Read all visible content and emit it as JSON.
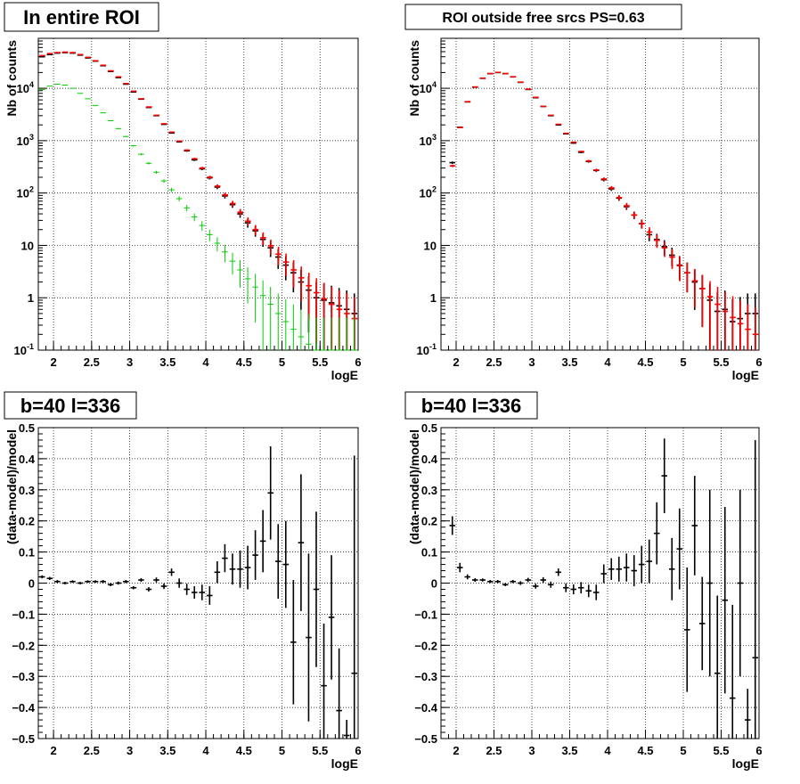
{
  "chart_data": [
    {
      "type": "scatter",
      "title": "In entire ROI",
      "xlabel": "logE",
      "ylabel": "Nb of counts",
      "xlim": [
        1.8,
        6.0
      ],
      "ylim": [
        0.1,
        90000
      ],
      "yscale": "log",
      "grid": true,
      "x_ticks": [
        "2",
        "2.5",
        "3",
        "3.5",
        "4",
        "4.5",
        "5",
        "5.5",
        "6"
      ],
      "y_ticks": [
        "10^-1",
        "1",
        "10",
        "10^2",
        "10^3",
        "10^4"
      ],
      "colors": {
        "data": "#000000",
        "model": "#ff0000",
        "blue": "#0000ff",
        "green": "#00cc00"
      },
      "series": [
        {
          "x": [
            1.85,
            1.95,
            2.05,
            2.15,
            2.25,
            2.35,
            2.45,
            2.55,
            2.65,
            2.75,
            2.85,
            2.95,
            3.05,
            3.15,
            3.25,
            3.35,
            3.45,
            3.55,
            3.65,
            3.75,
            3.85,
            3.95,
            4.05,
            4.15,
            4.25,
            4.35,
            4.45,
            4.55,
            4.65,
            4.75,
            4.85,
            4.95,
            5.05,
            5.15,
            5.25,
            5.35,
            5.45,
            5.55,
            5.65,
            5.75,
            5.85,
            5.95
          ],
          "values": [
            40000,
            44000,
            47000,
            48000,
            47000,
            43000,
            38000,
            33000,
            27000,
            21000,
            16000,
            12000,
            8500,
            6200,
            4300,
            3000,
            2050,
            1400,
            950,
            640,
            430,
            290,
            195,
            130,
            88,
            60,
            40,
            27,
            19,
            13,
            9,
            6,
            4.2,
            3,
            2,
            1.4,
            1,
            0.9,
            0.8,
            0.7,
            0.6,
            0.5
          ]
        },
        {
          "x": [
            1.85,
            1.95,
            2.05,
            2.15,
            2.25,
            2.35,
            2.45,
            2.55,
            2.65,
            2.75,
            2.85,
            2.95,
            3.05,
            3.15,
            3.25,
            3.35,
            3.45,
            3.55,
            3.65,
            3.75,
            3.85,
            3.95,
            4.05,
            4.15,
            4.25,
            4.35,
            4.45,
            4.55,
            4.65,
            4.75,
            4.85,
            4.95,
            5.05,
            5.15,
            5.25,
            5.35,
            5.45,
            5.55,
            5.65,
            5.75,
            5.85,
            5.95
          ],
          "values": [
            42000,
            46000,
            48000,
            49000,
            48000,
            44000,
            39000,
            33500,
            27500,
            21500,
            16500,
            12300,
            8800,
            6300,
            4400,
            3050,
            2100,
            1450,
            980,
            660,
            450,
            300,
            200,
            135,
            92,
            63,
            43,
            29,
            20,
            14,
            9.8,
            6.8,
            4.8,
            3.4,
            2.4,
            1.7,
            1.25,
            0.95,
            0.75,
            0.6,
            0.5,
            0.4
          ]
        },
        {
          "x": [
            1.85,
            1.95,
            2.05,
            2.15,
            2.25,
            2.35,
            2.45,
            2.55,
            2.65,
            2.75,
            2.85,
            2.95,
            3.05,
            3.15,
            3.25,
            3.35,
            3.45,
            3.55,
            3.65,
            3.75,
            3.85,
            3.95,
            4.05,
            4.15,
            4.25,
            4.35,
            4.45,
            4.55,
            4.65,
            4.75,
            4.85,
            4.95,
            5.05,
            5.15,
            5.25,
            5.35,
            5.45,
            5.55,
            5.65,
            5.75,
            5.85,
            5.95
          ],
          "values": [
            9500,
            11000,
            12000,
            11500,
            10000,
            8000,
            6300,
            4700,
            3400,
            2400,
            1700,
            1200,
            800,
            550,
            370,
            250,
            170,
            115,
            78,
            52,
            35,
            24,
            16,
            11,
            7.5,
            5,
            3.4,
            2.3,
            1.6,
            1.1,
            0.75,
            0.5,
            0.35,
            0.25,
            0.18,
            0.13,
            0.1,
            0.1,
            0.1,
            0.1,
            0.1,
            0.1
          ]
        }
      ]
    },
    {
      "type": "scatter",
      "title": "ROI outside free srcs PS=0.63",
      "xlabel": "logE",
      "ylabel": "Nb of counts",
      "xlim": [
        1.8,
        6.0
      ],
      "ylim": [
        0.1,
        90000
      ],
      "yscale": "log",
      "grid": true,
      "x_ticks": [
        "2",
        "2.5",
        "3",
        "3.5",
        "4",
        "4.5",
        "5",
        "5.5",
        "6"
      ],
      "y_ticks": [
        "10^-1",
        "1",
        "10",
        "10^2",
        "10^3",
        "10^4"
      ],
      "series": [
        {
          "x": [
            1.95,
            2.05,
            2.15,
            2.25,
            2.35,
            2.45,
            2.55,
            2.65,
            2.75,
            2.85,
            2.95,
            3.05,
            3.15,
            3.25,
            3.35,
            3.45,
            3.55,
            3.65,
            3.75,
            3.85,
            3.95,
            4.05,
            4.15,
            4.25,
            4.35,
            4.45,
            4.55,
            4.65,
            4.75,
            4.85,
            4.95,
            5.05,
            5.15,
            5.25,
            5.35,
            5.45,
            5.55,
            5.65,
            5.75,
            5.85,
            5.95
          ],
          "values": [
            380,
            1800,
            5500,
            10500,
            15500,
            19000,
            20000,
            19000,
            16500,
            13000,
            9500,
            6600,
            4500,
            3000,
            2000,
            1350,
            900,
            600,
            400,
            270,
            180,
            120,
            80,
            55,
            38,
            26,
            16,
            13,
            9.5,
            6.5,
            4.2,
            3,
            2,
            1.5,
            0.9,
            0.55,
            0.6,
            0.35,
            0.4,
            0.5,
            0.5
          ]
        },
        {
          "x": [
            1.95,
            2.05,
            2.15,
            2.25,
            2.35,
            2.45,
            2.55,
            2.65,
            2.75,
            2.85,
            2.95,
            3.05,
            3.15,
            3.25,
            3.35,
            3.45,
            3.55,
            3.65,
            3.75,
            3.85,
            3.95,
            4.05,
            4.15,
            4.25,
            4.35,
            4.45,
            4.55,
            4.65,
            4.75,
            4.85,
            4.95,
            5.05,
            5.15,
            5.25,
            5.35,
            5.45,
            5.55,
            5.65,
            5.75,
            5.85,
            5.95
          ],
          "values": [
            330,
            1780,
            5550,
            10600,
            15600,
            19100,
            20100,
            19100,
            16600,
            13100,
            9600,
            6700,
            4500,
            3050,
            2050,
            1380,
            930,
            620,
            410,
            275,
            185,
            125,
            82,
            57,
            38,
            26,
            18,
            12.5,
            9,
            6,
            4.1,
            3,
            2.1,
            1.5,
            1.05,
            0.75,
            0.55,
            0.42,
            0.32,
            0.25,
            0.2
          ]
        }
      ]
    },
    {
      "type": "scatter",
      "title": "b=40 l=336",
      "xlabel": "logE",
      "ylabel": "(data-model)/model",
      "xlim": [
        1.8,
        6.0
      ],
      "ylim": [
        -0.5,
        0.5
      ],
      "grid": true,
      "x_ticks": [
        "2",
        "2.5",
        "3",
        "3.5",
        "4",
        "4.5",
        "5",
        "5.5",
        "6"
      ],
      "y_ticks": [
        "-0.5",
        "-0.4",
        "-0.3",
        "-0.2",
        "-0.1",
        "0",
        "0.1",
        "0.2",
        "0.3",
        "0.4",
        "0.5"
      ],
      "series": [
        {
          "x": [
            1.85,
            1.95,
            2.05,
            2.15,
            2.25,
            2.35,
            2.45,
            2.55,
            2.65,
            2.75,
            2.85,
            2.95,
            3.05,
            3.15,
            3.25,
            3.35,
            3.45,
            3.55,
            3.65,
            3.75,
            3.85,
            3.95,
            4.05,
            4.15,
            4.25,
            4.35,
            4.45,
            4.55,
            4.65,
            4.75,
            4.85,
            4.95,
            5.05,
            5.15,
            5.25,
            5.35,
            5.45,
            5.55,
            5.65,
            5.75,
            5.85,
            5.95
          ],
          "values": [
            0.02,
            0.015,
            0.005,
            0.0,
            0.005,
            0.0,
            0.005,
            0.005,
            0.005,
            -0.005,
            0.0,
            0.005,
            -0.015,
            0.01,
            -0.02,
            0.01,
            -0.01,
            0.035,
            0.0,
            -0.02,
            -0.03,
            -0.03,
            -0.04,
            0.035,
            0.08,
            0.045,
            0.045,
            0.05,
            0.09,
            0.135,
            0.29,
            0.07,
            0.06,
            -0.19,
            0.13,
            -0.175,
            -0.02,
            -0.33,
            -0.11,
            -0.41,
            -0.49,
            -0.29
          ],
          "errors": [
            0.005,
            0.005,
            0.005,
            0.004,
            0.004,
            0.004,
            0.004,
            0.004,
            0.005,
            0.005,
            0.005,
            0.005,
            0.005,
            0.006,
            0.007,
            0.008,
            0.009,
            0.012,
            0.015,
            0.018,
            0.02,
            0.025,
            0.03,
            0.035,
            0.045,
            0.05,
            0.06,
            0.07,
            0.08,
            0.1,
            0.15,
            0.12,
            0.14,
            0.2,
            0.22,
            0.27,
            0.25,
            0.2,
            0.2,
            0.2,
            0.05,
            0.7
          ]
        }
      ]
    },
    {
      "type": "scatter",
      "title": "b=40 l=336",
      "xlabel": "logE",
      "ylabel": "(data-model)/model",
      "xlim": [
        1.8,
        6.0
      ],
      "ylim": [
        -0.5,
        0.5
      ],
      "grid": true,
      "x_ticks": [
        "2",
        "2.5",
        "3",
        "3.5",
        "4",
        "4.5",
        "5",
        "5.5",
        "6"
      ],
      "y_ticks": [
        "-0.5",
        "-0.4",
        "-0.3",
        "-0.2",
        "-0.1",
        "0",
        "0.1",
        "0.2",
        "0.3",
        "0.4",
        "0.5"
      ],
      "series": [
        {
          "x": [
            1.95,
            2.05,
            2.15,
            2.25,
            2.35,
            2.45,
            2.55,
            2.65,
            2.75,
            2.85,
            2.95,
            3.05,
            3.15,
            3.25,
            3.35,
            3.45,
            3.55,
            3.65,
            3.75,
            3.85,
            3.95,
            4.05,
            4.15,
            4.25,
            4.35,
            4.45,
            4.55,
            4.65,
            4.75,
            4.85,
            4.95,
            5.05,
            5.15,
            5.25,
            5.35,
            5.45,
            5.55,
            5.65,
            5.75,
            5.85,
            5.95
          ],
          "values": [
            0.185,
            0.05,
            0.02,
            0.01,
            0.01,
            0.005,
            0.005,
            -0.005,
            0.005,
            0.0,
            0.01,
            -0.01,
            0.01,
            -0.005,
            0.035,
            -0.015,
            -0.02,
            -0.015,
            -0.025,
            -0.03,
            0.03,
            0.045,
            0.045,
            0.05,
            0.04,
            0.06,
            0.07,
            0.16,
            0.345,
            0.045,
            0.11,
            -0.15,
            0.185,
            -0.13,
            0.0,
            -0.29,
            -0.055,
            -0.37,
            0.0,
            -0.44,
            -0.24
          ],
          "errors": [
            0.03,
            0.015,
            0.008,
            0.006,
            0.005,
            0.005,
            0.005,
            0.005,
            0.005,
            0.006,
            0.007,
            0.008,
            0.009,
            0.01,
            0.012,
            0.014,
            0.016,
            0.018,
            0.02,
            0.025,
            0.03,
            0.035,
            0.04,
            0.045,
            0.05,
            0.06,
            0.07,
            0.1,
            0.12,
            0.1,
            0.13,
            0.2,
            0.16,
            0.15,
            0.3,
            0.25,
            0.3,
            0.3,
            0.3,
            0.1,
            0.7
          ]
        }
      ]
    }
  ]
}
